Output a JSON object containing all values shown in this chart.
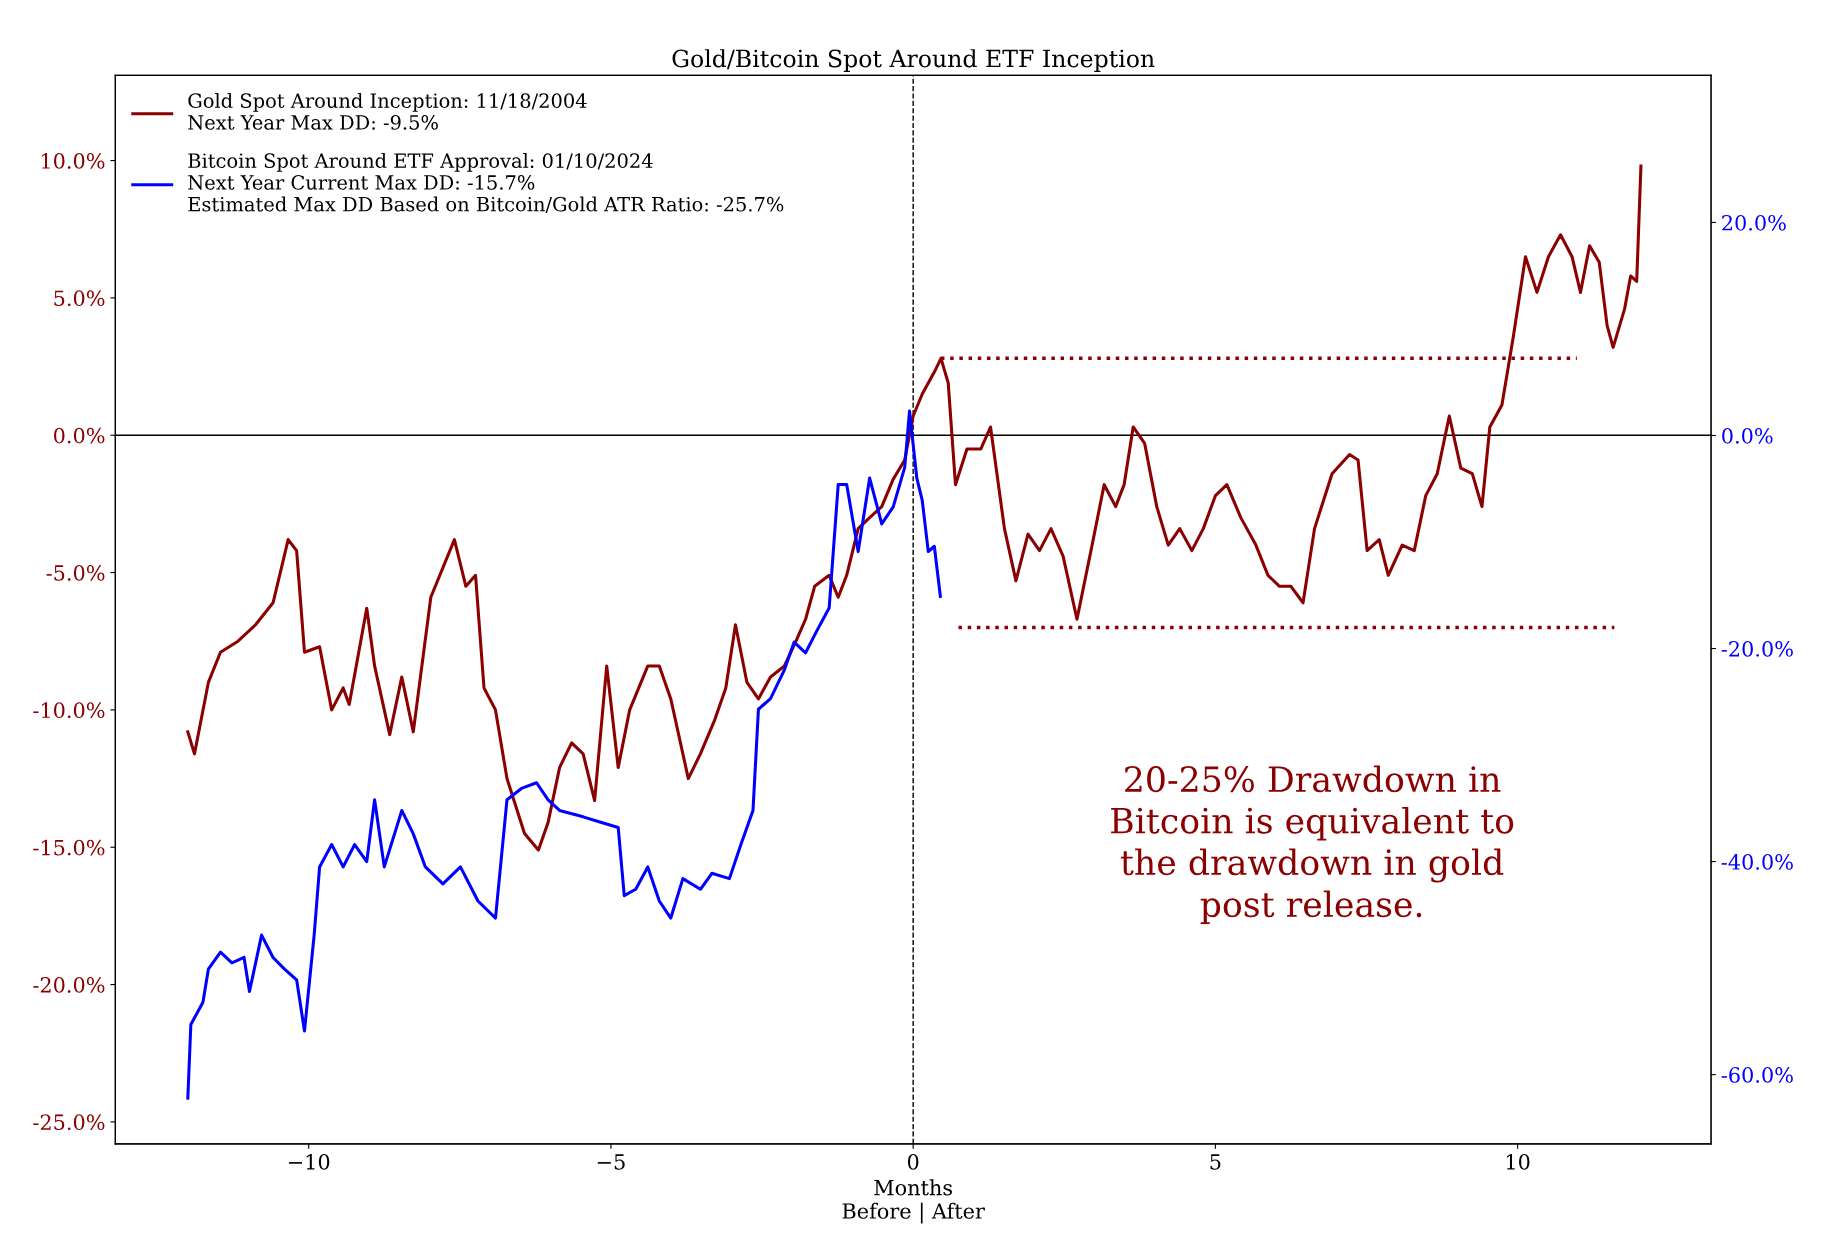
{
  "chart_data": {
    "type": "line",
    "title": "Gold/Bitcoin Spot Around ETF Inception",
    "xlabel": "Months\nBefore | After",
    "xlim": [
      -13.2,
      13.2
    ],
    "xticks": [
      {
        "value": -10,
        "label": "−10"
      },
      {
        "value": -5,
        "label": "−5"
      },
      0,
      5,
      10
    ],
    "ylim": [
      -25.8,
      13.1
    ],
    "yticks": [
      {
        "value": -25,
        "label": "-25.0%"
      },
      {
        "value": -20,
        "label": "-20.0%"
      },
      {
        "value": -15,
        "label": "-15.0%"
      },
      {
        "value": -10,
        "label": "-10.0%"
      },
      {
        "value": -5,
        "label": "-5.0%"
      },
      {
        "value": 0,
        "label": "0.0%"
      },
      {
        "value": 5,
        "label": "5.0%"
      },
      {
        "value": 10,
        "label": "10.0%"
      }
    ],
    "y2lim": [
      -66.5,
      33.8
    ],
    "y2ticks": [
      {
        "value": -60,
        "label": "-60.0%"
      },
      {
        "value": -40,
        "label": "-40.0%"
      },
      {
        "value": -20,
        "label": "-20.0%"
      },
      {
        "value": 0,
        "label": "0.0%"
      },
      {
        "value": 20,
        "label": "20.0%"
      }
    ],
    "grid": false,
    "legend": "top left",
    "series": [
      {
        "name": "Gold Spot Around Inception: 11/18/2004\nNext Year Max DD: -9.5%",
        "color": "#8b0000",
        "x": [
          -12.0,
          -11.89,
          -11.66,
          -11.46,
          -11.17,
          -10.88,
          -10.59,
          -10.34,
          -10.2,
          -10.07,
          -9.82,
          -9.62,
          -9.43,
          -9.33,
          -9.04,
          -8.91,
          -8.66,
          -8.46,
          -8.27,
          -7.98,
          -7.59,
          -7.4,
          -7.24,
          -7.1,
          -6.91,
          -6.72,
          -6.43,
          -6.2,
          -6.04,
          -5.85,
          -5.65,
          -5.46,
          -5.27,
          -5.07,
          -4.88,
          -4.69,
          -4.39,
          -4.2,
          -4.01,
          -3.72,
          -3.52,
          -3.29,
          -3.1,
          -2.94,
          -2.75,
          -2.56,
          -2.36,
          -2.13,
          -1.94,
          -1.78,
          -1.63,
          -1.39,
          -1.24,
          -1.1,
          -0.91,
          -0.72,
          -0.52,
          -0.33,
          -0.14,
          0,
          0.15,
          0.35,
          0.46,
          0.58,
          0.7,
          0.89,
          1.12,
          1.28,
          1.51,
          1.7,
          1.9,
          2.09,
          2.28,
          2.48,
          2.71,
          2.96,
          3.16,
          3.35,
          3.49,
          3.64,
          3.83,
          4.03,
          4.22,
          4.41,
          4.61,
          4.8,
          5.0,
          5.19,
          5.42,
          5.67,
          5.87,
          6.06,
          6.25,
          6.45,
          6.64,
          6.93,
          7.22,
          7.36,
          7.51,
          7.71,
          7.86,
          8.09,
          8.29,
          8.48,
          8.67,
          8.87,
          9.06,
          9.25,
          9.41,
          9.54,
          9.74,
          9.93,
          10.13,
          10.32,
          10.51,
          10.71,
          10.9,
          11.04,
          11.19,
          11.35,
          11.48,
          11.58,
          11.77,
          11.87,
          11.97,
          12.04
        ],
        "values": [
          -10.8,
          -11.6,
          -9.0,
          -7.9,
          -7.5,
          -6.9,
          -6.1,
          -3.8,
          -4.2,
          -7.9,
          -7.7,
          -10.0,
          -9.2,
          -9.8,
          -6.3,
          -8.4,
          -10.9,
          -8.8,
          -10.8,
          -5.9,
          -3.8,
          -5.5,
          -5.1,
          -9.2,
          -10.0,
          -12.5,
          -14.5,
          -15.1,
          -14.1,
          -12.1,
          -11.2,
          -11.6,
          -13.3,
          -8.4,
          -12.1,
          -10.0,
          -8.4,
          -8.4,
          -9.6,
          -12.5,
          -11.6,
          -10.4,
          -9.2,
          -6.9,
          -9.0,
          -9.6,
          -8.8,
          -8.4,
          -7.5,
          -6.7,
          -5.5,
          -5.1,
          -5.9,
          -5.1,
          -3.4,
          -3.0,
          -2.6,
          -1.6,
          -0.9,
          0.7,
          1.5,
          2.3,
          2.8,
          1.9,
          -1.8,
          -0.5,
          -0.5,
          0.3,
          -3.4,
          -5.3,
          -3.6,
          -4.2,
          -3.4,
          -4.4,
          -6.7,
          -4.0,
          -1.8,
          -2.6,
          -1.8,
          0.3,
          -0.3,
          -2.6,
          -4.0,
          -3.4,
          -4.2,
          -3.4,
          -2.2,
          -1.8,
          -3.0,
          -4.0,
          -5.1,
          -5.5,
          -5.5,
          -6.1,
          -3.4,
          -1.4,
          -0.7,
          -0.9,
          -4.2,
          -3.8,
          -5.1,
          -4.0,
          -4.2,
          -2.2,
          -1.4,
          0.7,
          -1.2,
          -1.4,
          -2.6,
          0.3,
          1.1,
          3.6,
          6.5,
          5.2,
          6.5,
          7.3,
          6.5,
          5.2,
          6.9,
          6.3,
          4.0,
          3.2,
          4.6,
          5.8,
          5.6,
          9.8
        ]
      },
      {
        "name": "Bitcoin Spot Around ETF Approval: 01/10/2024\nNext Year Current Max DD: -15.7%\nEstimated Max DD Based on Bitcoin/Gold ATR Ratio: -25.7%",
        "color": "#0000ff",
        "axis": "y2",
        "x": [
          -12.0,
          -11.95,
          -11.75,
          -11.66,
          -11.46,
          -11.27,
          -11.07,
          -10.98,
          -10.78,
          -10.59,
          -10.4,
          -10.2,
          -10.07,
          -9.91,
          -9.82,
          -9.62,
          -9.43,
          -9.24,
          -9.04,
          -8.91,
          -8.75,
          -8.46,
          -8.27,
          -8.07,
          -7.78,
          -7.49,
          -7.2,
          -6.91,
          -6.72,
          -6.47,
          -6.23,
          -6.04,
          -5.85,
          -5.46,
          -5.17,
          -4.88,
          -4.78,
          -4.59,
          -4.39,
          -4.2,
          -4.01,
          -3.81,
          -3.52,
          -3.33,
          -3.04,
          -2.85,
          -2.65,
          -2.56,
          -2.36,
          -2.13,
          -1.97,
          -1.78,
          -1.59,
          -1.39,
          -1.24,
          -1.1,
          -0.91,
          -0.72,
          -0.52,
          -0.33,
          -0.14,
          -0.06,
          0.06,
          0.15,
          0.25,
          0.35,
          0.45
        ],
        "values": [
          -62.2,
          -55.3,
          -53.2,
          -50.1,
          -48.5,
          -49.5,
          -49.0,
          -52.2,
          -46.9,
          -49.0,
          -50.1,
          -51.1,
          -55.9,
          -46.9,
          -40.5,
          -38.4,
          -40.5,
          -38.4,
          -40.0,
          -34.2,
          -40.5,
          -35.2,
          -37.4,
          -40.5,
          -42.1,
          -40.5,
          -43.7,
          -45.3,
          -34.2,
          -33.1,
          -32.6,
          -34.2,
          -35.2,
          -35.8,
          -36.3,
          -36.8,
          -43.2,
          -42.6,
          -40.5,
          -43.7,
          -45.3,
          -41.6,
          -42.6,
          -41.1,
          -41.6,
          -38.4,
          -35.2,
          -25.7,
          -24.7,
          -22.0,
          -19.4,
          -20.4,
          -18.3,
          -16.2,
          -4.6,
          -4.6,
          -10.9,
          -4.0,
          -8.3,
          -6.7,
          -3.0,
          2.3,
          -4.0,
          -6.1,
          -10.9,
          -10.4,
          -15.1
        ]
      },
      {
        "color": "#8b0000",
        "line_style": "dotted",
        "x": [
          0.46,
          10.98
        ],
        "values": [
          2.8,
          2.8
        ]
      },
      {
        "color": "#8b0000",
        "line_style": "dotted",
        "x": [
          0.75,
          11.6
        ],
        "values": [
          -7.0,
          -7.0
        ]
      }
    ],
    "ref_lines": [
      {
        "axis": "x",
        "value": 0,
        "color": "#000000",
        "line_style": "dashed"
      },
      {
        "axis": "y",
        "value": 0,
        "color": "#000000",
        "line_style": "solid"
      }
    ],
    "annotations": [
      "20-25% Drawdown in\nBitcoin is equivalent to\nthe drawdown in gold\npost release."
    ]
  }
}
